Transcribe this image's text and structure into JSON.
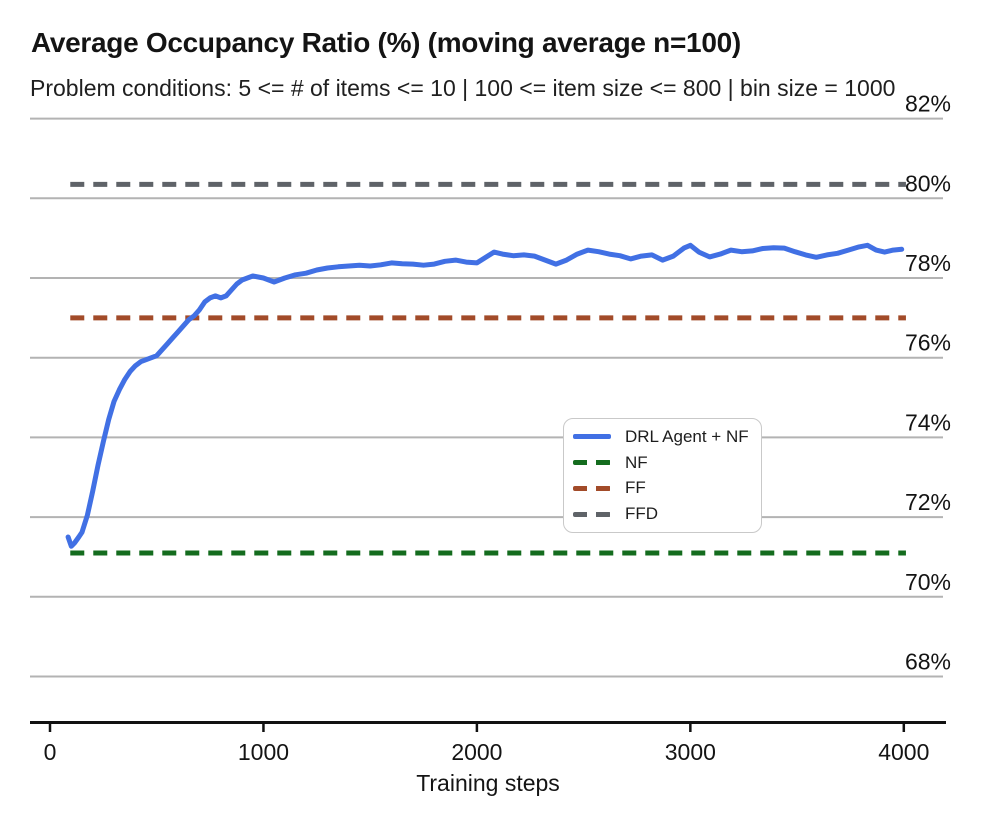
{
  "header": {
    "title": "Average Occupancy Ratio (%) (moving average n=100)",
    "subtitle": "Problem conditions: 5 <= # of items <= 10 | 100 <= item size <= 800 | bin size = 1000"
  },
  "colors": {
    "drl_blue": "#4170E4",
    "nf_green": "#146C1E",
    "ff_brown": "#A24B29",
    "ffd_gray": "#5F6368",
    "gridline": "#b3b3b3",
    "axis": "#111111"
  },
  "legend": {
    "items": [
      {
        "label": "DRL Agent + NF",
        "color": "#4170E4",
        "style": "solid"
      },
      {
        "label": "NF",
        "color": "#146C1E",
        "style": "dashed"
      },
      {
        "label": "FF",
        "color": "#A24B29",
        "style": "dashed"
      },
      {
        "label": "FFD",
        "color": "#5F6368",
        "style": "dashed"
      }
    ]
  },
  "chart_data": {
    "type": "line",
    "title": "Average Occupancy Ratio (%) (moving average n=100)",
    "subtitle": "Problem conditions: 5 <= # of items <= 10 | 100 <= item size <= 800 | bin size = 1000",
    "xlabel": "Training steps",
    "ylabel": "",
    "grid": "horizontal",
    "legend_position": "center-right-box",
    "xlim": [
      0,
      4200
    ],
    "ylim": [
      66.9,
      82.2
    ],
    "x_ticks": [
      {
        "v": 0,
        "label": "0"
      },
      {
        "v": 1000,
        "label": "1000"
      },
      {
        "v": 2000,
        "label": "2000"
      },
      {
        "v": 3000,
        "label": "3000"
      },
      {
        "v": 4000,
        "label": "4000"
      }
    ],
    "y_ticks": [
      {
        "v": 82,
        "label": "82%"
      },
      {
        "v": 80,
        "label": "80%"
      },
      {
        "v": 78,
        "label": "78%"
      },
      {
        "v": 76,
        "label": "76%"
      },
      {
        "v": 74,
        "label": "74%"
      },
      {
        "v": 72,
        "label": "72%"
      },
      {
        "v": 70,
        "label": "70%"
      },
      {
        "v": 68,
        "label": "68%"
      }
    ],
    "series": [
      {
        "name": "NF",
        "color": "#146C1E",
        "style": "dashed",
        "value": 71.1,
        "x_range": [
          95,
          4010
        ]
      },
      {
        "name": "FF",
        "color": "#A24B29",
        "style": "dashed",
        "value": 77.0,
        "x_range": [
          95,
          4010
        ]
      },
      {
        "name": "FFD",
        "color": "#5F6368",
        "style": "dashed",
        "value": 80.35,
        "x_range": [
          95,
          4010
        ]
      },
      {
        "name": "DRL Agent + NF",
        "color": "#4170E4",
        "style": "solid",
        "points": [
          [
            85,
            71.5
          ],
          [
            100,
            71.27
          ],
          [
            115,
            71.35
          ],
          [
            135,
            71.5
          ],
          [
            150,
            71.62
          ],
          [
            175,
            72.05
          ],
          [
            200,
            72.65
          ],
          [
            225,
            73.3
          ],
          [
            250,
            73.9
          ],
          [
            275,
            74.45
          ],
          [
            300,
            74.9
          ],
          [
            325,
            75.2
          ],
          [
            350,
            75.45
          ],
          [
            375,
            75.65
          ],
          [
            400,
            75.8
          ],
          [
            425,
            75.9
          ],
          [
            450,
            75.95
          ],
          [
            475,
            76.0
          ],
          [
            500,
            76.05
          ],
          [
            525,
            76.2
          ],
          [
            550,
            76.35
          ],
          [
            575,
            76.5
          ],
          [
            600,
            76.65
          ],
          [
            625,
            76.8
          ],
          [
            650,
            76.95
          ],
          [
            675,
            77.05
          ],
          [
            700,
            77.2
          ],
          [
            725,
            77.4
          ],
          [
            750,
            77.5
          ],
          [
            775,
            77.55
          ],
          [
            800,
            77.5
          ],
          [
            825,
            77.55
          ],
          [
            850,
            77.7
          ],
          [
            875,
            77.85
          ],
          [
            900,
            77.95
          ],
          [
            925,
            78.0
          ],
          [
            950,
            78.05
          ],
          [
            1000,
            78.0
          ],
          [
            1050,
            77.9
          ],
          [
            1100,
            78.0
          ],
          [
            1150,
            78.08
          ],
          [
            1200,
            78.12
          ],
          [
            1250,
            78.2
          ],
          [
            1300,
            78.25
          ],
          [
            1350,
            78.28
          ],
          [
            1400,
            78.3
          ],
          [
            1450,
            78.32
          ],
          [
            1500,
            78.3
          ],
          [
            1550,
            78.33
          ],
          [
            1600,
            78.38
          ],
          [
            1650,
            78.36
          ],
          [
            1700,
            78.35
          ],
          [
            1750,
            78.32
          ],
          [
            1800,
            78.35
          ],
          [
            1850,
            78.42
          ],
          [
            1900,
            78.45
          ],
          [
            1950,
            78.4
          ],
          [
            2000,
            78.38
          ],
          [
            2050,
            78.55
          ],
          [
            2080,
            78.65
          ],
          [
            2120,
            78.6
          ],
          [
            2170,
            78.56
          ],
          [
            2220,
            78.58
          ],
          [
            2270,
            78.55
          ],
          [
            2320,
            78.45
          ],
          [
            2370,
            78.35
          ],
          [
            2420,
            78.45
          ],
          [
            2470,
            78.6
          ],
          [
            2520,
            78.7
          ],
          [
            2570,
            78.66
          ],
          [
            2620,
            78.6
          ],
          [
            2670,
            78.56
          ],
          [
            2720,
            78.48
          ],
          [
            2770,
            78.55
          ],
          [
            2820,
            78.58
          ],
          [
            2870,
            78.45
          ],
          [
            2920,
            78.55
          ],
          [
            2970,
            78.75
          ],
          [
            3000,
            78.82
          ],
          [
            3040,
            78.65
          ],
          [
            3090,
            78.53
          ],
          [
            3140,
            78.6
          ],
          [
            3190,
            78.7
          ],
          [
            3240,
            78.66
          ],
          [
            3290,
            78.68
          ],
          [
            3340,
            78.74
          ],
          [
            3390,
            78.76
          ],
          [
            3440,
            78.75
          ],
          [
            3490,
            78.66
          ],
          [
            3540,
            78.58
          ],
          [
            3590,
            78.52
          ],
          [
            3640,
            78.58
          ],
          [
            3690,
            78.62
          ],
          [
            3740,
            78.7
          ],
          [
            3790,
            78.78
          ],
          [
            3830,
            78.82
          ],
          [
            3870,
            78.7
          ],
          [
            3910,
            78.65
          ],
          [
            3950,
            78.7
          ],
          [
            3990,
            78.72
          ]
        ]
      }
    ]
  }
}
